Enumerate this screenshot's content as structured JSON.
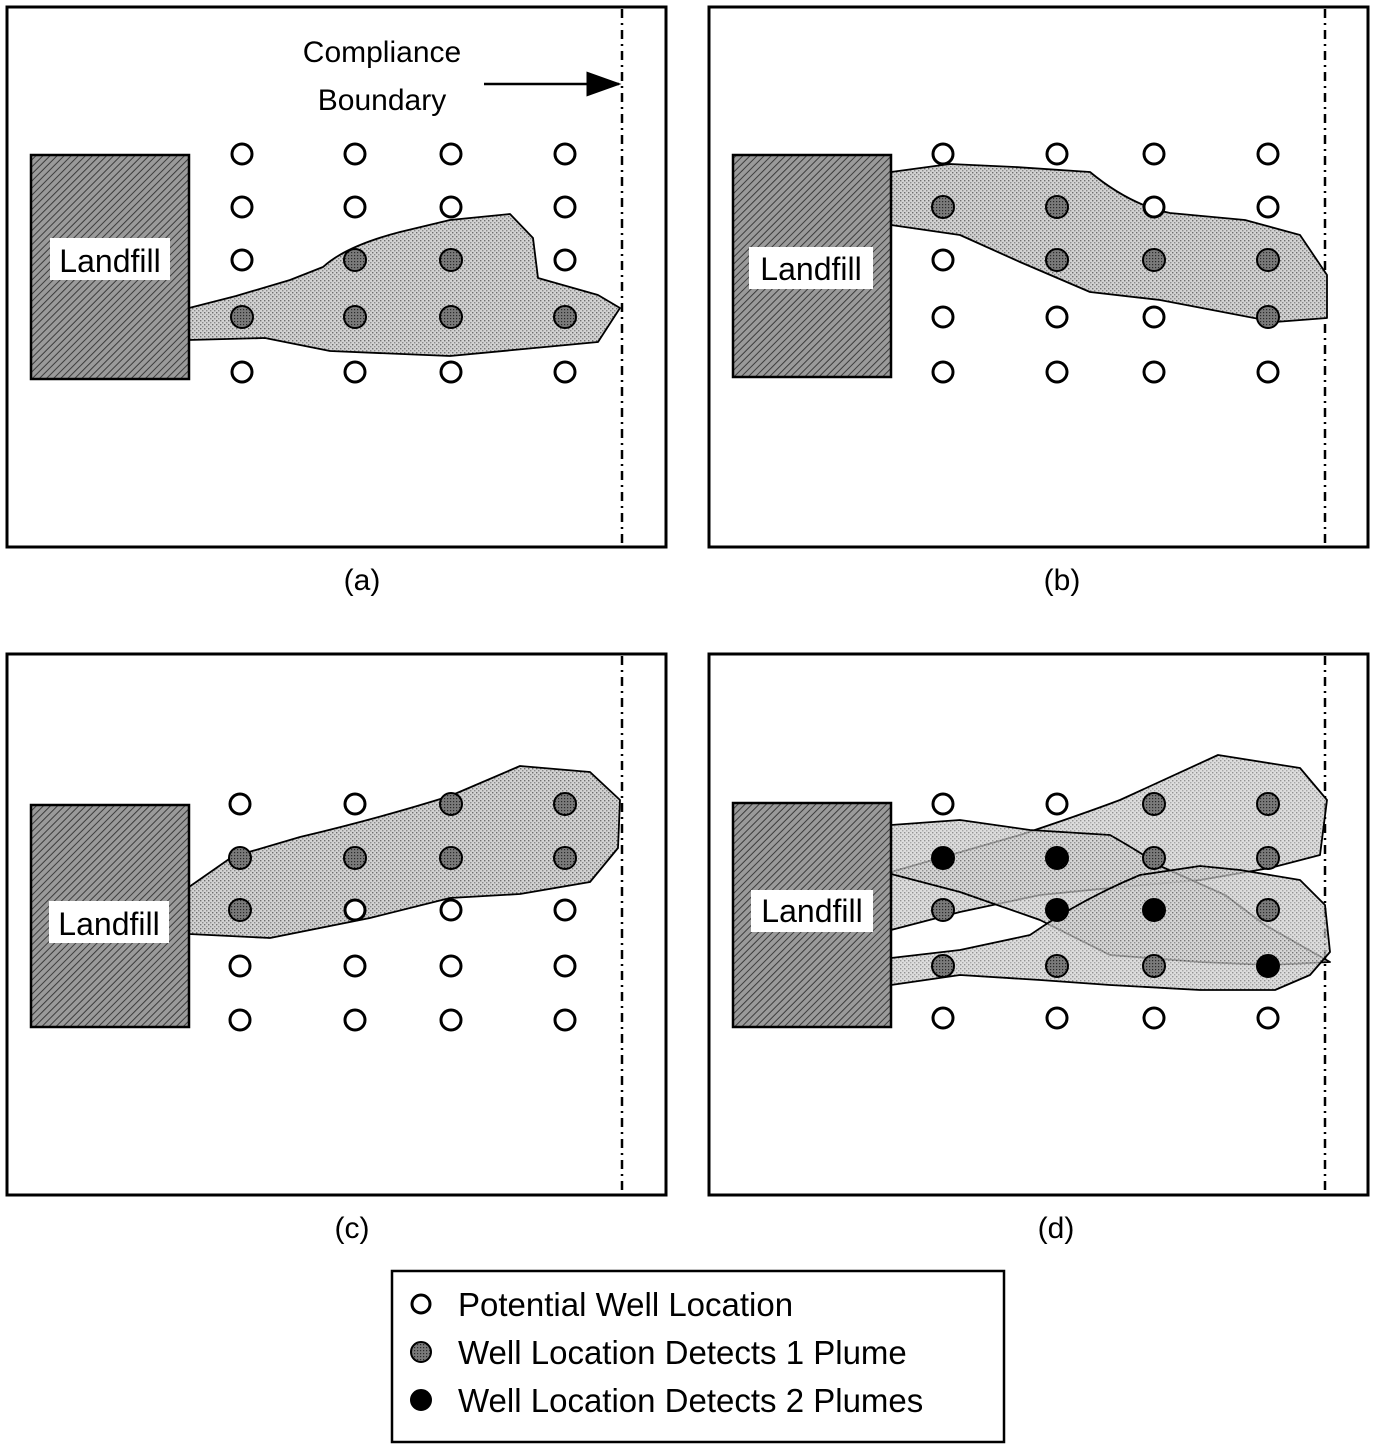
{
  "colors": {
    "ink": "#000000",
    "landfill_fill": "#6f6f6f",
    "plume_fill": "#c9c9c9",
    "one_plume_well": "#6a6a6a",
    "two_plume_well": "#000000",
    "potential_well": "#ffffff"
  },
  "landfill_label": "Landfill",
  "annotation": {
    "line1": "Compliance",
    "line2": "Boundary"
  },
  "panels": [
    {
      "id": "a",
      "caption": "(a)"
    },
    {
      "id": "b",
      "caption": "(b)"
    },
    {
      "id": "c",
      "caption": "(c)"
    },
    {
      "id": "d",
      "caption": "(d)"
    }
  ],
  "legend": [
    {
      "symbol": "potential",
      "label": "Potential Well Location"
    },
    {
      "symbol": "one",
      "label": "Well Location Detects 1 Plume"
    },
    {
      "symbol": "two",
      "label": "Well Location Detects 2 Plumes"
    }
  ],
  "well_grid_status": {
    "a": [
      [
        "o",
        "o",
        "o",
        "o"
      ],
      [
        "o",
        "o",
        "o",
        "o"
      ],
      [
        "o",
        "1",
        "1",
        "o"
      ],
      [
        "1",
        "1",
        "1",
        "1"
      ],
      [
        "o",
        "o",
        "o",
        "o"
      ]
    ],
    "b": [
      [
        "o",
        "o",
        "o",
        "o"
      ],
      [
        "1",
        "1",
        "o",
        "o"
      ],
      [
        "o",
        "1",
        "1",
        "1"
      ],
      [
        "o",
        "o",
        "o",
        "1"
      ],
      [
        "o",
        "o",
        "o",
        "o"
      ]
    ],
    "c": [
      [
        "o",
        "o",
        "1",
        "1"
      ],
      [
        "1",
        "1",
        "1",
        "1"
      ],
      [
        "1",
        "o",
        "o",
        "o"
      ],
      [
        "o",
        "o",
        "o",
        "o"
      ],
      [
        "o",
        "o",
        "o",
        "o"
      ]
    ],
    "d": [
      [
        "o",
        "o",
        "1",
        "1"
      ],
      [
        "2",
        "2",
        "1",
        "1"
      ],
      [
        "1",
        "2",
        "2",
        "1"
      ],
      [
        "1",
        "1",
        "1",
        "2"
      ],
      [
        "o",
        "o",
        "o",
        "o"
      ]
    ]
  }
}
